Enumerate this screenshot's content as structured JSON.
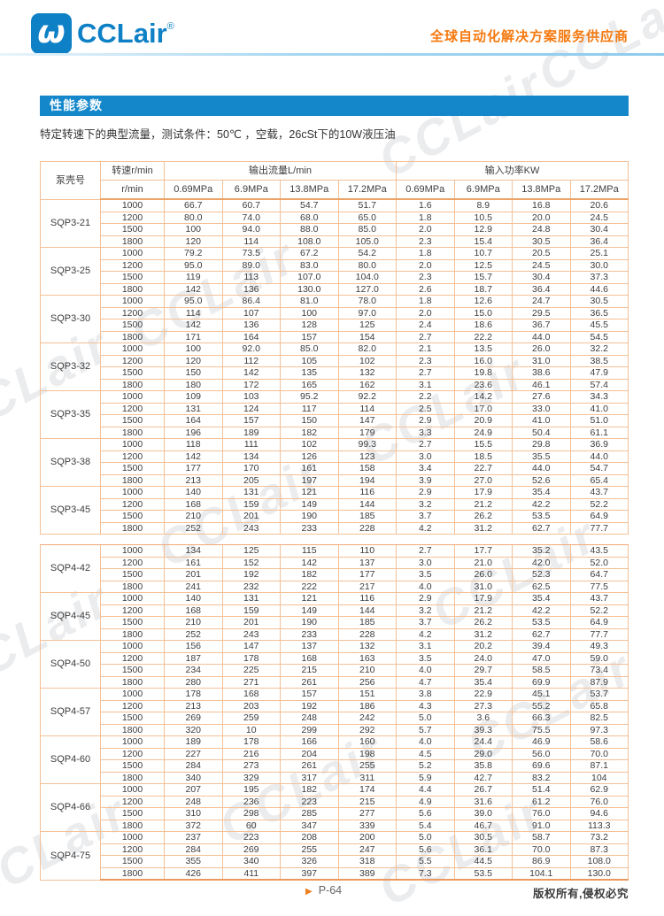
{
  "header": {
    "logo_text": "CCLair",
    "logo_reg": "®",
    "tagline": "全球自动化解决方案服务供应商"
  },
  "icons": {
    "logo_glyph": "ω",
    "page_arrow": "▶"
  },
  "watermark": {
    "text": "CCLair"
  },
  "section": {
    "title": "性能参数"
  },
  "subtitle": "特定转速下的典型流量，测试条件：50℃ ，空载，26cSt下的10W液压油",
  "colors": {
    "brand_blue": "#0e80c6",
    "bar_blue": "#1487cb",
    "accent_orange": "#f5790f",
    "table_border": "#f4c096"
  },
  "table": {
    "col_headers": {
      "pump": "泵壳号",
      "speed_top": "转速r/min",
      "speed_bottom": "r/min",
      "flow_group": "输出流量L/min",
      "power_group": "输入功率KW",
      "pressures": [
        "0.69MPa",
        "6.9MPa",
        "13.8MPa",
        "17.2MPa"
      ]
    },
    "groups": [
      {
        "model": "SQP3-21",
        "rows": [
          {
            "speed": "1000",
            "flow": [
              "66.7",
              "60.7",
              "54.7",
              "51.7"
            ],
            "power": [
              "1.6",
              "8.9",
              "16.8",
              "20.6"
            ]
          },
          {
            "speed": "1200",
            "flow": [
              "80.0",
              "74.0",
              "68.0",
              "65.0"
            ],
            "power": [
              "1.8",
              "10.5",
              "20.0",
              "24.5"
            ]
          },
          {
            "speed": "1500",
            "flow": [
              "100",
              "94.0",
              "88.0",
              "85.0"
            ],
            "power": [
              "2.0",
              "12.9",
              "24.8",
              "30.4"
            ]
          },
          {
            "speed": "1800",
            "flow": [
              "120",
              "114",
              "108.0",
              "105.0"
            ],
            "power": [
              "2.3",
              "15.4",
              "30.5",
              "36.4"
            ]
          }
        ]
      },
      {
        "model": "SQP3-25",
        "rows": [
          {
            "speed": "1000",
            "flow": [
              "79.2",
              "73.5",
              "67.2",
              "54.2"
            ],
            "power": [
              "1.8",
              "10.7",
              "20.5",
              "25.1"
            ]
          },
          {
            "speed": "1200",
            "flow": [
              "95.0",
              "89.0",
              "83.0",
              "80.0"
            ],
            "power": [
              "2.0",
              "12.5",
              "24.5",
              "30.0"
            ]
          },
          {
            "speed": "1500",
            "flow": [
              "119",
              "113",
              "107.0",
              "104.0"
            ],
            "power": [
              "2.3",
              "15.7",
              "30.4",
              "37.3"
            ]
          },
          {
            "speed": "1800",
            "flow": [
              "142",
              "136",
              "130.0",
              "127.0"
            ],
            "power": [
              "2.6",
              "18.7",
              "36.4",
              "44.6"
            ]
          }
        ]
      },
      {
        "model": "SQP3-30",
        "rows": [
          {
            "speed": "1000",
            "flow": [
              "95.0",
              "86.4",
              "81.0",
              "78.0"
            ],
            "power": [
              "1.8",
              "12.6",
              "24.7",
              "30.5"
            ]
          },
          {
            "speed": "1200",
            "flow": [
              "114",
              "107",
              "100",
              "97.0"
            ],
            "power": [
              "2.0",
              "15.0",
              "29.5",
              "36.5"
            ]
          },
          {
            "speed": "1500",
            "flow": [
              "142",
              "136",
              "128",
              "125"
            ],
            "power": [
              "2.4",
              "18.6",
              "36.7",
              "45.5"
            ]
          },
          {
            "speed": "1800",
            "flow": [
              "171",
              "164",
              "157",
              "154"
            ],
            "power": [
              "2.7",
              "22.2",
              "44.0",
              "54.5"
            ]
          }
        ]
      },
      {
        "model": "SQP3-32",
        "rows": [
          {
            "speed": "1000",
            "flow": [
              "100",
              "92.0",
              "85.0",
              "82.0"
            ],
            "power": [
              "2.1",
              "13.5",
              "26.0",
              "32.2"
            ]
          },
          {
            "speed": "1200",
            "flow": [
              "120",
              "112",
              "105",
              "102"
            ],
            "power": [
              "2.3",
              "16.0",
              "31.0",
              "38.5"
            ]
          },
          {
            "speed": "1500",
            "flow": [
              "150",
              "142",
              "135",
              "132"
            ],
            "power": [
              "2.7",
              "19.8",
              "38.6",
              "47.9"
            ]
          },
          {
            "speed": "1800",
            "flow": [
              "180",
              "172",
              "165",
              "162"
            ],
            "power": [
              "3.1",
              "23.6",
              "46.1",
              "57.4"
            ]
          }
        ]
      },
      {
        "model": "SQP3-35",
        "rows": [
          {
            "speed": "1000",
            "flow": [
              "109",
              "103",
              "95.2",
              "92.2"
            ],
            "power": [
              "2.2",
              "14.2",
              "27.6",
              "34.3"
            ]
          },
          {
            "speed": "1200",
            "flow": [
              "131",
              "124",
              "117",
              "114"
            ],
            "power": [
              "2.5",
              "17.0",
              "33.0",
              "41.0"
            ]
          },
          {
            "speed": "1500",
            "flow": [
              "164",
              "157",
              "150",
              "147"
            ],
            "power": [
              "2.9",
              "20.9",
              "41.0",
              "51.0"
            ]
          },
          {
            "speed": "1800",
            "flow": [
              "196",
              "189",
              "182",
              "179"
            ],
            "power": [
              "3.3",
              "24.9",
              "50.4",
              "61.1"
            ]
          }
        ]
      },
      {
        "model": "SQP3-38",
        "rows": [
          {
            "speed": "1000",
            "flow": [
              "118",
              "111",
              "102",
              "99.3"
            ],
            "power": [
              "2.7",
              "15.5",
              "29.8",
              "36.9"
            ]
          },
          {
            "speed": "1200",
            "flow": [
              "142",
              "134",
              "126",
              "123"
            ],
            "power": [
              "3.0",
              "18.5",
              "35.5",
              "44.0"
            ]
          },
          {
            "speed": "1500",
            "flow": [
              "177",
              "170",
              "161",
              "158"
            ],
            "power": [
              "3.4",
              "22.7",
              "44.0",
              "54.7"
            ]
          },
          {
            "speed": "1800",
            "flow": [
              "213",
              "205",
              "197",
              "194"
            ],
            "power": [
              "3.9",
              "27.0",
              "52.6",
              "65.4"
            ]
          }
        ]
      },
      {
        "model": "SQP3-45",
        "rows": [
          {
            "speed": "1000",
            "flow": [
              "140",
              "131",
              "121",
              "116"
            ],
            "power": [
              "2.9",
              "17.9",
              "35.4",
              "43.7"
            ]
          },
          {
            "speed": "1200",
            "flow": [
              "168",
              "159",
              "149",
              "144"
            ],
            "power": [
              "3.2",
              "21.2",
              "42.2",
              "52.2"
            ]
          },
          {
            "speed": "1500",
            "flow": [
              "210",
              "201",
              "190",
              "185"
            ],
            "power": [
              "3.7",
              "26.2",
              "53.5",
              "64.9"
            ]
          },
          {
            "speed": "1800",
            "flow": [
              "252",
              "243",
              "233",
              "228"
            ],
            "power": [
              "4.2",
              "31.2",
              "62.7",
              "77.7"
            ]
          }
        ]
      },
      {
        "model": "SQP4-42",
        "gap_before": true,
        "rows": [
          {
            "speed": "1000",
            "flow": [
              "134",
              "125",
              "115",
              "110"
            ],
            "power": [
              "2.7",
              "17.7",
              "35.2",
              "43.5"
            ]
          },
          {
            "speed": "1200",
            "flow": [
              "161",
              "152",
              "142",
              "137"
            ],
            "power": [
              "3.0",
              "21.0",
              "42.0",
              "52.0"
            ]
          },
          {
            "speed": "1500",
            "flow": [
              "201",
              "192",
              "182",
              "177"
            ],
            "power": [
              "3.5",
              "26.0",
              "52.3",
              "64.7"
            ]
          },
          {
            "speed": "1800",
            "flow": [
              "241",
              "232",
              "222",
              "217"
            ],
            "power": [
              "4.0",
              "31.0",
              "62.5",
              "77.5"
            ]
          }
        ]
      },
      {
        "model": "SQP4-45",
        "rows": [
          {
            "speed": "1000",
            "flow": [
              "140",
              "131",
              "121",
              "116"
            ],
            "power": [
              "2.9",
              "17.9",
              "35.4",
              "43.7"
            ]
          },
          {
            "speed": "1200",
            "flow": [
              "168",
              "159",
              "149",
              "144"
            ],
            "power": [
              "3.2",
              "21.2",
              "42.2",
              "52.2"
            ]
          },
          {
            "speed": "1500",
            "flow": [
              "210",
              "201",
              "190",
              "185"
            ],
            "power": [
              "3.7",
              "26.2",
              "53.5",
              "64.9"
            ]
          },
          {
            "speed": "1800",
            "flow": [
              "252",
              "243",
              "233",
              "228"
            ],
            "power": [
              "4.2",
              "31.2",
              "62.7",
              "77.7"
            ]
          }
        ]
      },
      {
        "model": "SQP4-50",
        "rows": [
          {
            "speed": "1000",
            "flow": [
              "156",
              "147",
              "137",
              "132"
            ],
            "power": [
              "3.1",
              "20.2",
              "39.4",
              "49.3"
            ]
          },
          {
            "speed": "1200",
            "flow": [
              "187",
              "178",
              "168",
              "163"
            ],
            "power": [
              "3.5",
              "24.0",
              "47.0",
              "59.0"
            ]
          },
          {
            "speed": "1500",
            "flow": [
              "234",
              "225",
              "215",
              "210"
            ],
            "power": [
              "4.0",
              "29.7",
              "58.5",
              "73.4"
            ]
          },
          {
            "speed": "1800",
            "flow": [
              "280",
              "271",
              "261",
              "256"
            ],
            "power": [
              "4.7",
              "35.4",
              "69.9",
              "87.9"
            ]
          }
        ]
      },
      {
        "model": "SQP4-57",
        "rows": [
          {
            "speed": "1000",
            "flow": [
              "178",
              "168",
              "157",
              "151"
            ],
            "power": [
              "3.8",
              "22.9",
              "45.1",
              "53.7"
            ]
          },
          {
            "speed": "1200",
            "flow": [
              "213",
              "203",
              "192",
              "186"
            ],
            "power": [
              "4.3",
              "27.3",
              "55.2",
              "65.8"
            ]
          },
          {
            "speed": "1500",
            "flow": [
              "269",
              "259",
              "248",
              "242"
            ],
            "power": [
              "5.0",
              "3.6",
              "66.3",
              "82.5"
            ]
          },
          {
            "speed": "1800",
            "flow": [
              "320",
              "10",
              "299",
              "292"
            ],
            "power": [
              "5.7",
              "39.3",
              "75.5",
              "97.3"
            ]
          }
        ]
      },
      {
        "model": "SQP4-60",
        "rows": [
          {
            "speed": "1000",
            "flow": [
              "189",
              "178",
              "166",
              "160"
            ],
            "power": [
              "4.0",
              "24.4",
              "46.9",
              "58.6"
            ]
          },
          {
            "speed": "1200",
            "flow": [
              "227",
              "216",
              "204",
              "198"
            ],
            "power": [
              "4.5",
              "29.0",
              "56.0",
              "70.0"
            ]
          },
          {
            "speed": "1500",
            "flow": [
              "284",
              "273",
              "261",
              "255"
            ],
            "power": [
              "5.2",
              "35.8",
              "69.6",
              "87.1"
            ]
          },
          {
            "speed": "1800",
            "flow": [
              "340",
              "329",
              "317",
              "311"
            ],
            "power": [
              "5.9",
              "42.7",
              "83.2",
              "104"
            ]
          }
        ]
      },
      {
        "model": "SQP4-66",
        "rows": [
          {
            "speed": "1000",
            "flow": [
              "207",
              "195",
              "182",
              "174"
            ],
            "power": [
              "4.4",
              "26.7",
              "51.4",
              "62.9"
            ]
          },
          {
            "speed": "1200",
            "flow": [
              "248",
              "236",
              "223",
              "215"
            ],
            "power": [
              "4.9",
              "31.6",
              "61.2",
              "76.0"
            ]
          },
          {
            "speed": "1500",
            "flow": [
              "310",
              "298",
              "285",
              "277"
            ],
            "power": [
              "5.6",
              "39.0",
              "76.0",
              "94.6"
            ]
          },
          {
            "speed": "1800",
            "flow": [
              "372",
              "60",
              "347",
              "339"
            ],
            "power": [
              "5.4",
              "46.7",
              "91.0",
              "113.3"
            ]
          }
        ]
      },
      {
        "model": "SQP4-75",
        "rows": [
          {
            "speed": "1000",
            "flow": [
              "237",
              "223",
              "208",
              "200"
            ],
            "power": [
              "5.0",
              "30.5",
              "58.7",
              "73.2"
            ]
          },
          {
            "speed": "1200",
            "flow": [
              "284",
              "269",
              "255",
              "247"
            ],
            "power": [
              "5.6",
              "36.1",
              "70.0",
              "87.3"
            ]
          },
          {
            "speed": "1500",
            "flow": [
              "355",
              "340",
              "326",
              "318"
            ],
            "power": [
              "5.5",
              "44.5",
              "86.9",
              "108.0"
            ]
          },
          {
            "speed": "1800",
            "flow": [
              "426",
              "411",
              "397",
              "389"
            ],
            "power": [
              "7.3",
              "53.5",
              "104.1",
              "130.0"
            ]
          }
        ]
      }
    ]
  },
  "footer": {
    "page": "P-64",
    "copyright": "版权所有,侵权必究"
  }
}
